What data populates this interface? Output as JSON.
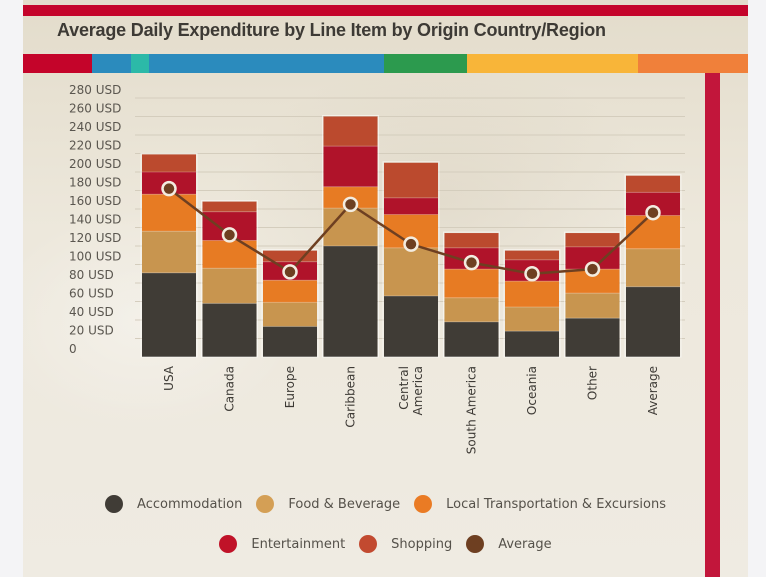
{
  "title": "Average Daily Expenditure by Line Item by Origin Country/Region",
  "color_band": [
    {
      "name": "red",
      "color": "#c4042a",
      "fraction": 0.0952
    },
    {
      "name": "blue",
      "color": "#2b8bbd",
      "fraction": 0.0538
    },
    {
      "name": "teal",
      "color": "#2cb9a8",
      "fraction": 0.0248
    },
    {
      "name": "blue",
      "color": "#2b8bbd",
      "fraction": 0.3241
    },
    {
      "name": "green",
      "color": "#2c9a4e",
      "fraction": 0.1145
    },
    {
      "name": "yellow",
      "color": "#f8b539",
      "fraction": 0.2359
    },
    {
      "name": "orange",
      "color": "#f0803a",
      "fraction": 0.1517
    }
  ],
  "chart_data": {
    "type": "bar",
    "stacked": true,
    "title": "Average Daily Expenditure by Line Item by Origin Country/Region",
    "xlabel": "",
    "ylabel": "",
    "ylim": [
      0,
      280
    ],
    "grid": true,
    "legend_position": "bottom",
    "y_ticks": [
      0,
      20,
      40,
      60,
      80,
      100,
      120,
      140,
      160,
      180,
      200,
      220,
      240,
      260,
      280
    ],
    "y_tick_labels": [
      "0",
      "20 USD",
      "40 USD",
      "60 USD",
      "80 USD",
      "100 USD",
      "120 USD",
      "140 USD",
      "160 USD",
      "180 USD",
      "200 USD",
      "220 USD",
      "240 USD",
      "260 USD",
      "280 USD"
    ],
    "categories": [
      "USA",
      "Canada",
      "Europe",
      "Caribbean",
      "Central America",
      "South America",
      "Oceania",
      "Other",
      "Average"
    ],
    "category_label_lines": [
      [
        "USA"
      ],
      [
        "Canada"
      ],
      [
        "Europe"
      ],
      [
        "Caribbean"
      ],
      [
        "Central",
        "America"
      ],
      [
        "South America"
      ],
      [
        "Oceania"
      ],
      [
        "Other"
      ],
      [
        "Average"
      ]
    ],
    "series": [
      {
        "name": "Accommodation",
        "color": "#403c36",
        "values": [
          91,
          58,
          33,
          120,
          66,
          38,
          28,
          42,
          76
        ]
      },
      {
        "name": "Food & Beverage",
        "color": "#c8954f",
        "values": [
          45,
          38,
          26,
          41,
          52,
          26,
          26,
          27,
          41
        ]
      },
      {
        "name": "Local Transportation & Excursions",
        "color": "#e77b23",
        "values": [
          40,
          30,
          24,
          23,
          36,
          31,
          28,
          26,
          36
        ]
      },
      {
        "name": "Entertainment",
        "color": "#b0132a",
        "values": [
          24,
          31,
          20,
          44,
          18,
          23,
          23,
          24,
          25
        ]
      },
      {
        "name": "Shopping",
        "color": "#bb4a2e",
        "values": [
          19,
          11,
          12,
          32,
          38,
          16,
          10,
          15,
          18
        ]
      }
    ],
    "line_series": {
      "name": "Average",
      "color": "#6e3f21",
      "values": [
        182,
        132,
        92,
        165,
        122,
        102,
        90,
        95,
        156
      ]
    }
  },
  "legend": {
    "rows": [
      [
        {
          "label": "Accommodation",
          "color": "#403c36"
        },
        {
          "label": "Food & Beverage",
          "color": "#d49f55"
        },
        {
          "label": "Local Transportation & Excursions",
          "color": "#ea7b24"
        }
      ],
      [
        {
          "label": "Entertainment",
          "color": "#c01228"
        },
        {
          "label": "Shopping",
          "color": "#c24a30"
        },
        {
          "label": "Average",
          "color": "#6e3f21"
        }
      ]
    ]
  }
}
